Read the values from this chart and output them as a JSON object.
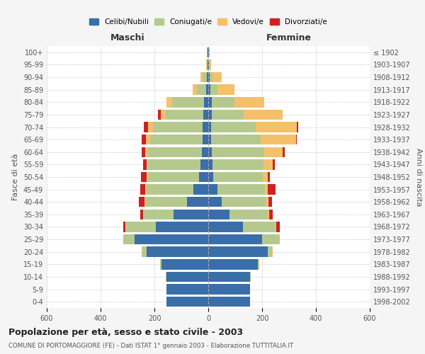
{
  "age_groups": [
    "0-4",
    "5-9",
    "10-14",
    "15-19",
    "20-24",
    "25-29",
    "30-34",
    "35-39",
    "40-44",
    "45-49",
    "50-54",
    "55-59",
    "60-64",
    "65-69",
    "70-74",
    "75-79",
    "80-84",
    "85-89",
    "90-94",
    "95-99",
    "100+"
  ],
  "birth_years": [
    "1998-2002",
    "1993-1997",
    "1988-1992",
    "1983-1987",
    "1978-1982",
    "1973-1977",
    "1968-1972",
    "1963-1967",
    "1958-1962",
    "1953-1957",
    "1948-1952",
    "1943-1947",
    "1938-1942",
    "1933-1937",
    "1928-1932",
    "1923-1927",
    "1918-1922",
    "1913-1917",
    "1908-1912",
    "1903-1907",
    "≤ 1902"
  ],
  "maschi": {
    "celibi": [
      155,
      155,
      155,
      175,
      230,
      275,
      195,
      130,
      80,
      55,
      35,
      30,
      25,
      22,
      20,
      18,
      15,
      8,
      5,
      3,
      2
    ],
    "coniugati": [
      0,
      1,
      2,
      5,
      15,
      40,
      110,
      110,
      155,
      175,
      190,
      195,
      200,
      195,
      185,
      140,
      120,
      35,
      15,
      3,
      2
    ],
    "vedovi": [
      0,
      0,
      0,
      0,
      2,
      2,
      2,
      2,
      3,
      3,
      5,
      5,
      8,
      15,
      20,
      18,
      20,
      15,
      8,
      2,
      0
    ],
    "divorziati": [
      0,
      0,
      0,
      0,
      0,
      0,
      8,
      10,
      20,
      20,
      20,
      12,
      15,
      15,
      15,
      10,
      0,
      0,
      0,
      0,
      0
    ]
  },
  "femmine": {
    "nubili": [
      155,
      155,
      155,
      185,
      220,
      200,
      130,
      80,
      50,
      35,
      18,
      15,
      12,
      10,
      10,
      12,
      12,
      8,
      5,
      3,
      2
    ],
    "coniugate": [
      0,
      0,
      2,
      5,
      18,
      65,
      120,
      140,
      165,
      175,
      185,
      190,
      195,
      185,
      165,
      120,
      85,
      25,
      10,
      3,
      2
    ],
    "vedove": [
      0,
      0,
      0,
      0,
      2,
      2,
      3,
      5,
      8,
      10,
      18,
      35,
      70,
      130,
      155,
      145,
      110,
      65,
      35,
      5,
      2
    ],
    "divorziate": [
      0,
      0,
      0,
      0,
      0,
      0,
      12,
      15,
      15,
      30,
      8,
      8,
      8,
      5,
      5,
      0,
      0,
      0,
      0,
      0,
      0
    ]
  },
  "colors": {
    "celibi": "#3a6ea8",
    "coniugati": "#b5c98e",
    "vedovi": "#f5c06a",
    "divorziati": "#cc2222"
  },
  "legend_labels": [
    "Celibi/Nubili",
    "Coniugati/e",
    "Vedovi/e",
    "Divorziati/e"
  ],
  "title": "Popolazione per età, sesso e stato civile - 2003",
  "subtitle": "COMUNE DI PORTOMAGGIORE (FE) - Dati ISTAT 1° gennaio 2003 - Elaborazione TUTTITALIA.IT",
  "xlabel_left": "Maschi",
  "xlabel_right": "Femmine",
  "ylabel_left": "Fasce di età",
  "ylabel_right": "Anni di nascita",
  "xlim": 600,
  "background_color": "#f5f5f5",
  "bar_background": "#ffffff"
}
